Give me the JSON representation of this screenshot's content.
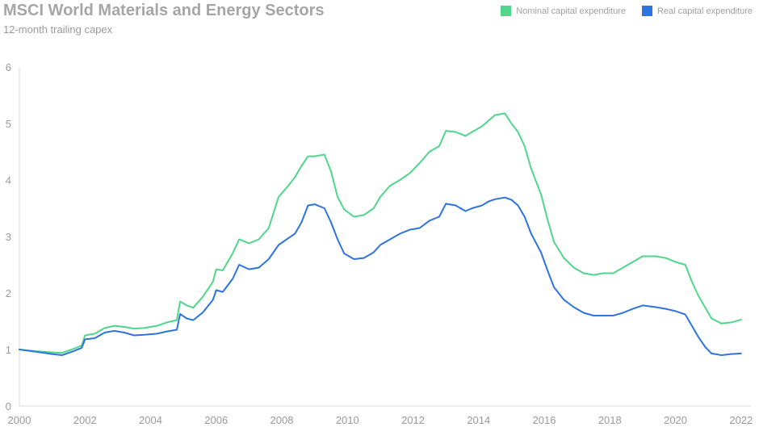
{
  "chart_data": {
    "type": "line",
    "title": "MSCI World Materials and Energy Sectors",
    "subtitle": "12-month trailing capex",
    "xlim": [
      2000,
      2022.3
    ],
    "ylim": [
      0,
      6
    ],
    "x_ticks": [
      2000,
      2002,
      2004,
      2006,
      2008,
      2010,
      2012,
      2014,
      2016,
      2018,
      2020,
      2022
    ],
    "y_ticks": [
      0,
      1,
      2,
      3,
      4,
      5,
      6
    ],
    "x_tick_labels": [
      "2000",
      "2002",
      "2004",
      "2006",
      "2008",
      "2010",
      "2012",
      "2014",
      "2016",
      "2018",
      "2020",
      "2022"
    ],
    "y_tick_labels": [
      "0",
      "1",
      "2",
      "3",
      "4",
      "5",
      "6"
    ],
    "grid": false,
    "legend_position": "top-right",
    "series": [
      {
        "name": "Nominal capital expenditure",
        "color": "#4fd68a",
        "points": [
          [
            2000.0,
            1.0
          ],
          [
            2000.5,
            0.97
          ],
          [
            2001.0,
            0.95
          ],
          [
            2001.3,
            0.94
          ],
          [
            2001.6,
            1.0
          ],
          [
            2001.9,
            1.07
          ],
          [
            2002.0,
            1.25
          ],
          [
            2002.3,
            1.28
          ],
          [
            2002.6,
            1.38
          ],
          [
            2002.9,
            1.42
          ],
          [
            2003.2,
            1.4
          ],
          [
            2003.5,
            1.37
          ],
          [
            2003.8,
            1.38
          ],
          [
            2004.2,
            1.42
          ],
          [
            2004.5,
            1.48
          ],
          [
            2004.8,
            1.52
          ],
          [
            2004.9,
            1.85
          ],
          [
            2005.1,
            1.78
          ],
          [
            2005.3,
            1.74
          ],
          [
            2005.6,
            1.94
          ],
          [
            2005.9,
            2.2
          ],
          [
            2006.0,
            2.42
          ],
          [
            2006.2,
            2.4
          ],
          [
            2006.5,
            2.7
          ],
          [
            2006.7,
            2.95
          ],
          [
            2007.0,
            2.88
          ],
          [
            2007.3,
            2.95
          ],
          [
            2007.6,
            3.15
          ],
          [
            2007.9,
            3.7
          ],
          [
            2008.2,
            3.9
          ],
          [
            2008.4,
            4.05
          ],
          [
            2008.6,
            4.25
          ],
          [
            2008.8,
            4.42
          ],
          [
            2009.0,
            4.42
          ],
          [
            2009.3,
            4.45
          ],
          [
            2009.5,
            4.15
          ],
          [
            2009.7,
            3.7
          ],
          [
            2009.9,
            3.48
          ],
          [
            2010.2,
            3.35
          ],
          [
            2010.5,
            3.38
          ],
          [
            2010.8,
            3.5
          ],
          [
            2011.0,
            3.7
          ],
          [
            2011.3,
            3.9
          ],
          [
            2011.6,
            4.0
          ],
          [
            2011.9,
            4.12
          ],
          [
            2012.2,
            4.3
          ],
          [
            2012.5,
            4.5
          ],
          [
            2012.8,
            4.6
          ],
          [
            2013.0,
            4.87
          ],
          [
            2013.3,
            4.85
          ],
          [
            2013.6,
            4.78
          ],
          [
            2013.8,
            4.85
          ],
          [
            2014.1,
            4.95
          ],
          [
            2014.3,
            5.05
          ],
          [
            2014.5,
            5.15
          ],
          [
            2014.8,
            5.18
          ],
          [
            2015.0,
            5.0
          ],
          [
            2015.2,
            4.85
          ],
          [
            2015.4,
            4.6
          ],
          [
            2015.6,
            4.2
          ],
          [
            2015.9,
            3.75
          ],
          [
            2016.1,
            3.3
          ],
          [
            2016.3,
            2.9
          ],
          [
            2016.6,
            2.62
          ],
          [
            2016.9,
            2.45
          ],
          [
            2017.2,
            2.35
          ],
          [
            2017.5,
            2.32
          ],
          [
            2017.8,
            2.35
          ],
          [
            2018.1,
            2.35
          ],
          [
            2018.4,
            2.45
          ],
          [
            2018.7,
            2.55
          ],
          [
            2019.0,
            2.65
          ],
          [
            2019.4,
            2.65
          ],
          [
            2019.7,
            2.62
          ],
          [
            2020.0,
            2.55
          ],
          [
            2020.3,
            2.5
          ],
          [
            2020.5,
            2.2
          ],
          [
            2020.7,
            1.95
          ],
          [
            2020.9,
            1.75
          ],
          [
            2021.1,
            1.55
          ],
          [
            2021.4,
            1.46
          ],
          [
            2021.7,
            1.48
          ],
          [
            2022.0,
            1.53
          ]
        ]
      },
      {
        "name": "Real capital expenditure",
        "color": "#2e74e0",
        "points": [
          [
            2000.0,
            1.0
          ],
          [
            2000.5,
            0.96
          ],
          [
            2001.0,
            0.92
          ],
          [
            2001.3,
            0.9
          ],
          [
            2001.6,
            0.96
          ],
          [
            2001.9,
            1.03
          ],
          [
            2002.0,
            1.18
          ],
          [
            2002.3,
            1.2
          ],
          [
            2002.6,
            1.3
          ],
          [
            2002.9,
            1.33
          ],
          [
            2003.2,
            1.3
          ],
          [
            2003.5,
            1.25
          ],
          [
            2003.8,
            1.26
          ],
          [
            2004.2,
            1.28
          ],
          [
            2004.5,
            1.32
          ],
          [
            2004.8,
            1.35
          ],
          [
            2004.9,
            1.63
          ],
          [
            2005.1,
            1.55
          ],
          [
            2005.3,
            1.52
          ],
          [
            2005.6,
            1.66
          ],
          [
            2005.9,
            1.88
          ],
          [
            2006.0,
            2.05
          ],
          [
            2006.2,
            2.02
          ],
          [
            2006.5,
            2.25
          ],
          [
            2006.7,
            2.5
          ],
          [
            2007.0,
            2.42
          ],
          [
            2007.3,
            2.45
          ],
          [
            2007.6,
            2.6
          ],
          [
            2007.9,
            2.85
          ],
          [
            2008.2,
            2.97
          ],
          [
            2008.4,
            3.05
          ],
          [
            2008.6,
            3.25
          ],
          [
            2008.8,
            3.55
          ],
          [
            2009.0,
            3.57
          ],
          [
            2009.3,
            3.5
          ],
          [
            2009.5,
            3.25
          ],
          [
            2009.7,
            2.95
          ],
          [
            2009.9,
            2.7
          ],
          [
            2010.2,
            2.6
          ],
          [
            2010.5,
            2.62
          ],
          [
            2010.8,
            2.72
          ],
          [
            2011.0,
            2.85
          ],
          [
            2011.3,
            2.95
          ],
          [
            2011.6,
            3.05
          ],
          [
            2011.9,
            3.12
          ],
          [
            2012.2,
            3.15
          ],
          [
            2012.5,
            3.28
          ],
          [
            2012.8,
            3.35
          ],
          [
            2013.0,
            3.58
          ],
          [
            2013.3,
            3.55
          ],
          [
            2013.6,
            3.45
          ],
          [
            2013.8,
            3.5
          ],
          [
            2014.1,
            3.55
          ],
          [
            2014.3,
            3.62
          ],
          [
            2014.5,
            3.66
          ],
          [
            2014.8,
            3.69
          ],
          [
            2015.0,
            3.65
          ],
          [
            2015.2,
            3.55
          ],
          [
            2015.4,
            3.35
          ],
          [
            2015.6,
            3.05
          ],
          [
            2015.9,
            2.72
          ],
          [
            2016.1,
            2.4
          ],
          [
            2016.3,
            2.1
          ],
          [
            2016.6,
            1.88
          ],
          [
            2016.9,
            1.75
          ],
          [
            2017.2,
            1.65
          ],
          [
            2017.5,
            1.6
          ],
          [
            2017.8,
            1.6
          ],
          [
            2018.1,
            1.6
          ],
          [
            2018.4,
            1.65
          ],
          [
            2018.7,
            1.72
          ],
          [
            2019.0,
            1.78
          ],
          [
            2019.4,
            1.75
          ],
          [
            2019.7,
            1.72
          ],
          [
            2020.0,
            1.68
          ],
          [
            2020.3,
            1.62
          ],
          [
            2020.5,
            1.42
          ],
          [
            2020.7,
            1.22
          ],
          [
            2020.9,
            1.05
          ],
          [
            2021.1,
            0.93
          ],
          [
            2021.4,
            0.9
          ],
          [
            2021.7,
            0.92
          ],
          [
            2022.0,
            0.93
          ]
        ]
      }
    ]
  }
}
